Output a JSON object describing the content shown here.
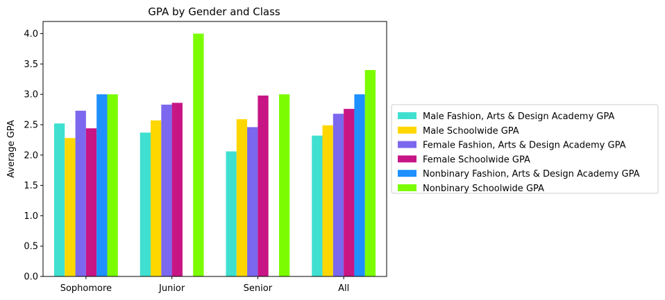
{
  "chart_data": {
    "type": "bar",
    "title": "GPA by Gender and Class",
    "xlabel": "",
    "ylabel": "Average GPA",
    "ylim": [
      0,
      4.2
    ],
    "yticks": [
      "0.0",
      "0.5",
      "1.0",
      "1.5",
      "2.0",
      "2.5",
      "3.0",
      "3.5",
      "4.0"
    ],
    "ytick_values": [
      0,
      0.5,
      1,
      1.5,
      2,
      2.5,
      3,
      3.5,
      4
    ],
    "categories": [
      "Sophomore",
      "Junior",
      "Senior",
      "All"
    ],
    "grid": false,
    "legend_position": "center-right outside",
    "series": [
      {
        "name": "Male Fashion, Arts & Design Academy GPA",
        "color": "#40E0D0",
        "values": [
          2.52,
          2.37,
          2.06,
          2.32
        ]
      },
      {
        "name": "Male Schoolwide GPA",
        "color": "#FFD700",
        "values": [
          2.28,
          2.57,
          2.59,
          2.49
        ]
      },
      {
        "name": "Female Fashion, Arts & Design Academy GPA",
        "color": "#7B68EE",
        "values": [
          2.73,
          2.83,
          2.46,
          2.68
        ]
      },
      {
        "name": "Female Schoolwide GPA",
        "color": "#C71585",
        "values": [
          2.44,
          2.86,
          2.98,
          2.76
        ]
      },
      {
        "name": "Nonbinary Fashion, Arts & Design Academy GPA",
        "color": "#1E90FF",
        "values": [
          3.0,
          null,
          null,
          3.0
        ]
      },
      {
        "name": "Nonbinary Schoolwide GPA",
        "color": "#7CFC00",
        "values": [
          3.0,
          4.0,
          3.0,
          3.4
        ]
      }
    ]
  }
}
